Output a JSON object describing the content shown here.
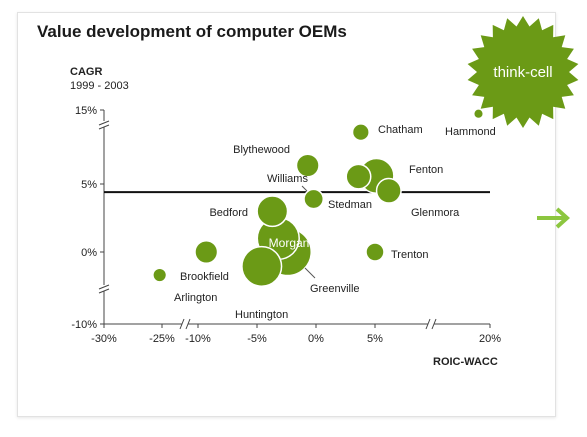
{
  "colors": {
    "bubble": "#6b9a16",
    "bubble_stroke": "#ffffff",
    "seal": "#6b9a16",
    "arrow": "#8cc63f",
    "axis": "#444444"
  },
  "icons": {
    "brand_seal": "starburst-seal-icon",
    "next": "arrow-right-icon"
  },
  "brand": {
    "seal_text": "think-cell"
  },
  "chart_data": {
    "type": "scatter",
    "title": "Value development of computer OEMs",
    "ylabel": "CAGR",
    "ylabel_sub": "1999 - 2003",
    "xlabel": "ROIC-WACC",
    "x_ticks": [
      "-30%",
      "-25%",
      "-10%",
      "-5%",
      "0%",
      "5%",
      "20%"
    ],
    "y_ticks": [
      "15%",
      "5%",
      "0%",
      "-10%"
    ],
    "x_breaks": [
      [
        -30,
        -25
      ],
      [
        -25,
        -10
      ],
      [
        5,
        20
      ]
    ],
    "y_breaks": [
      [
        5,
        15
      ],
      [
        -10,
        0
      ]
    ],
    "reference_line_y": 4.4,
    "grid": false,
    "points": [
      {
        "name": "Hammond",
        "x": 18.5,
        "y": 14.5,
        "size": 2
      },
      {
        "name": "Chatham",
        "x": 3.8,
        "y": 12.0,
        "size": 6
      },
      {
        "name": "Blythewood",
        "x": -0.7,
        "y": 7.5,
        "size": 11
      },
      {
        "name": "Fenton",
        "x": 5.2,
        "y": 6.1,
        "size": 26
      },
      {
        "name": "Williams",
        "x": 3.6,
        "y": 6.0,
        "size": 13
      },
      {
        "name": "Glenmora",
        "x": 6.8,
        "y": 4.5,
        "size": 13
      },
      {
        "name": "Stedman",
        "x": -0.2,
        "y": 3.9,
        "size": 8
      },
      {
        "name": "Bedford",
        "x": -3.7,
        "y": 3.0,
        "size": 20
      },
      {
        "name": "Morgan",
        "x": -3.2,
        "y": 1.0,
        "size": 38
      },
      {
        "name": "Greenville",
        "x": -2.4,
        "y": 0.0,
        "size": 48
      },
      {
        "name": "Brookfield",
        "x": -9.3,
        "y": 0.0,
        "size": 11
      },
      {
        "name": "Trenton",
        "x": 5.0,
        "y": 0.0,
        "size": 7
      },
      {
        "name": "Huntington",
        "x": -4.6,
        "y": -2.0,
        "size": 34
      },
      {
        "name": "Arlington",
        "x": -25.2,
        "y": -3.2,
        "size": 4
      }
    ]
  }
}
